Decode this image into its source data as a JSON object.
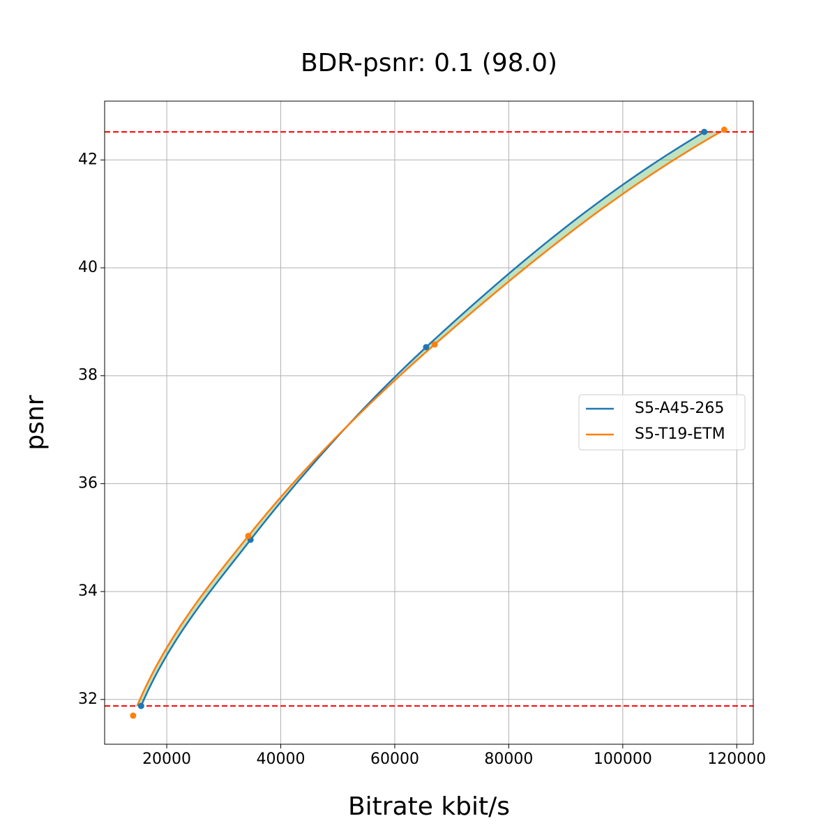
{
  "chart_data": {
    "type": "line",
    "title": "BDR-psnr: 0.1 (98.0)",
    "x_label": "Bitrate kbit/s",
    "y_label": "psnr",
    "series": [
      {
        "name": "S5-A45-265",
        "color": "#1f77b4",
        "x": [
          15500,
          34700,
          65500,
          114300
        ],
        "values": [
          31.88,
          34.96,
          38.53,
          42.52
        ]
      },
      {
        "name": "S5-T19-ETM",
        "color": "#ff7f0e",
        "x": [
          14100,
          34300,
          67000,
          117800
        ],
        "values": [
          31.7,
          35.03,
          38.58,
          42.56
        ]
      }
    ],
    "hlines": [
      42.52,
      31.88
    ],
    "hline_color": "#ff0000",
    "fill_color": "#2ca02c",
    "xlim": [
      9100,
      122900
    ],
    "ylim": [
      31.17,
      43.09
    ],
    "xticks": [
      20000,
      40000,
      60000,
      80000,
      100000,
      120000
    ],
    "yticks": [
      32,
      34,
      36,
      38,
      40,
      42
    ],
    "grid": true,
    "legend": "right"
  }
}
